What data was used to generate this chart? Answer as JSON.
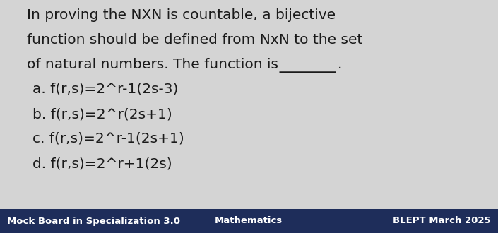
{
  "bg_color": "#d4d4d4",
  "footer_bg": "#1e2d5a",
  "footer_text_color": "#ffffff",
  "main_text_color": "#1a1a1a",
  "title_lines": [
    "In proving the NXN is countable, a bijective",
    "function should be defined from NxN to the set",
    "of natural numbers. The function is"
  ],
  "options": [
    "a. f(r,s)=2^r-1(2s-3)",
    "b. f(r,s)=2^r(2s+1)",
    "c. f(r,s)=2^r-1(2s+1)",
    "d. f(r,s)=2^r+1(2s)"
  ],
  "footer_left": "Mock Board in Specialization 3.0",
  "footer_center": "Mathematics",
  "footer_right": "BLEPT March 2025",
  "main_fontsize": 14.5,
  "option_fontsize": 14.5,
  "footer_fontsize": 9.5,
  "fig_width": 7.05,
  "fig_height": 3.3,
  "dpi": 100
}
